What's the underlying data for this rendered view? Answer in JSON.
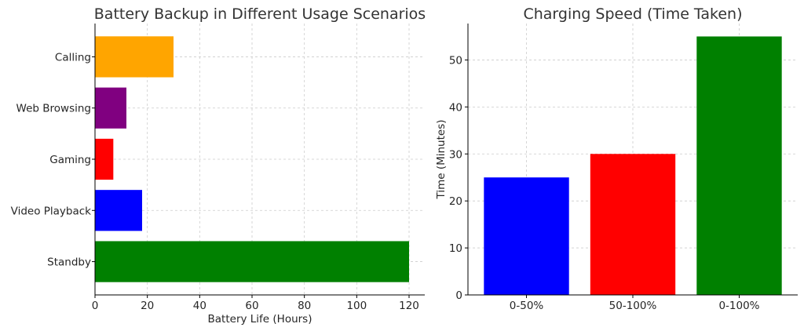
{
  "chart_data": [
    {
      "type": "bar",
      "orientation": "horizontal",
      "title": "Battery Backup in Different Usage Scenarios",
      "xlabel": "Battery Life (Hours)",
      "ylabel": "",
      "categories": [
        "Standby",
        "Video Playback",
        "Gaming",
        "Web Browsing",
        "Calling"
      ],
      "values": [
        120,
        18,
        7,
        12,
        30
      ],
      "colors": [
        "#008000",
        "#0000ff",
        "#ff0000",
        "#800080",
        "#ffa500"
      ],
      "xlim": [
        0,
        126
      ],
      "xticks": [
        0,
        20,
        40,
        60,
        80,
        100,
        120
      ],
      "grid": true
    },
    {
      "type": "bar",
      "orientation": "vertical",
      "title": "Charging Speed (Time Taken)",
      "xlabel": "",
      "ylabel": "Time (Minutes)",
      "categories": [
        "0-50%",
        "50-100%",
        "0-100%"
      ],
      "values": [
        25,
        30,
        55
      ],
      "colors": [
        "#0000ff",
        "#ff0000",
        "#008000"
      ],
      "ylim": [
        0,
        57.75
      ],
      "yticks": [
        0,
        10,
        20,
        30,
        40,
        50
      ],
      "grid": true
    }
  ]
}
